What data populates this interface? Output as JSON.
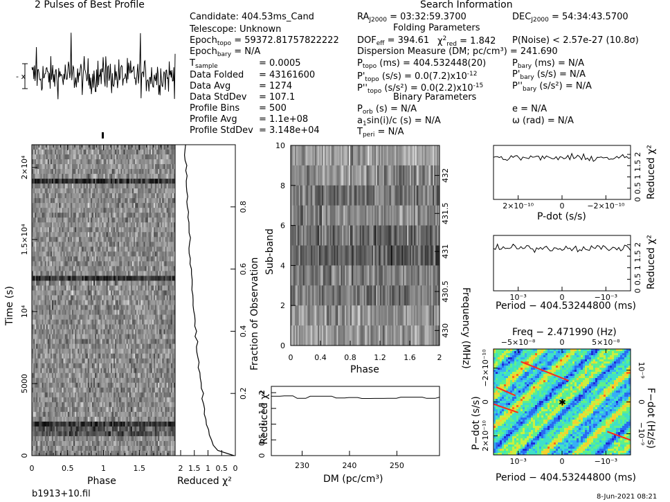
{
  "header": {
    "pulses_title": "2 Pulses of Best Profile",
    "search_title": "Search Information",
    "folding_title": "Folding Parameters",
    "binary_title": "Binary Parameters"
  },
  "info_left": [
    {
      "label": "Candidate:  404.53ms_Cand",
      "value": ""
    },
    {
      "label": "Telescope:  Unknown",
      "value": ""
    },
    {
      "label": "Epoch",
      "sub": "topo",
      "value": "= 59372.81757822222"
    },
    {
      "label": "Epoch",
      "sub": "bary",
      "value": "= N/A"
    },
    {
      "label": "T",
      "sub": "sample",
      "value": "=   0.0005"
    },
    {
      "label": "Data Folded",
      "value": "=   43161600"
    },
    {
      "label": "Data Avg",
      "value": "=   1274"
    },
    {
      "label": "Data StdDev",
      "value": "=   107.1"
    },
    {
      "label": "Profile Bins",
      "value": "=   500"
    },
    {
      "label": "Profile Avg",
      "value": "=   1.1e+08"
    },
    {
      "label": "Profile StdDev",
      "value": "=   3.148e+04"
    }
  ],
  "info_right": {
    "ra": "RA",
    "ra_sub": "J2000",
    "ra_val": "= 03:32:59.3700",
    "dec": "DEC",
    "dec_sub": "J2000",
    "dec_val": "= 54:34:43.5700",
    "dof": "DOF",
    "dof_sub": "eff",
    "dof_val": "= 394.61",
    "chi": "χ",
    "chi_sup": "2",
    "chi_sub": "red",
    "chi_val": "= 1.842",
    "pnoise": "P(Noise) < 2.57e-27   (10.8σ)",
    "dm_line": "Dispersion Measure (DM; pc/cm³) = 241.690",
    "ptopo": "P",
    "ptopo_sub": "topo",
    "ptopo_val": "(ms)  =  404.532448(20)",
    "pbary": "P",
    "pbary_sub": "bary",
    "pbary_val": "(ms) = N/A",
    "pdtopo": "P'",
    "pdtopo_sub": "topo",
    "pdtopo_val": "(s/s) = 0.0(7.2)x10",
    "pdtopo_exp": "-12",
    "pdbary": "P'",
    "pdbary_sub": "bary",
    "pdbary_val": "(s/s) = N/A",
    "pddtopo": "P''",
    "pddtopo_sub": "topo",
    "pddtopo_val": "(s/s²) = 0.0(2.2)x10",
    "pddtopo_exp": "-15",
    "pddbary": "P''",
    "pddbary_sub": "bary",
    "pddbary_val": "(s/s²) = N/A",
    "porb": "P",
    "porb_sub": "orb",
    "porb_val": "(s) = N/A",
    "ecc": "e = N/A",
    "asini": "a",
    "asini_sub": "1",
    "asini_val": "sin(i)/c (s) = N/A",
    "omega": "ω (rad) = N/A",
    "tperi": "T",
    "tperi_sub": "peri",
    "tperi_val": "= N/A"
  },
  "footer": {
    "filename": "b1913+10.fil",
    "date": "8-Jun-2021 08:21"
  },
  "colors": {
    "line": "#000000",
    "grid_dark": "#1a1a1a",
    "map_low": "#1a2bd9",
    "map_high": "#ff2a1a"
  },
  "chart_data": [
    {
      "id": "profile",
      "type": "line",
      "title": "2 Pulses of Best Profile",
      "xlabel": "",
      "ylabel": "",
      "note": "noise-like pulse profile, 2 rotations, no significant peak"
    },
    {
      "id": "time_phase",
      "type": "heatmap",
      "xlabel": "Phase",
      "ylabel": "Time (s)",
      "x_ticks": [
        "0",
        "0.5",
        "1",
        "1.5"
      ],
      "y_ticks": [
        "0",
        "5000",
        "10⁴",
        "1.5×10⁴",
        "2×10⁴"
      ],
      "xlim": [
        0,
        2
      ],
      "ylim": [
        0,
        21580
      ],
      "right_axis_label": "Fraction of Observation",
      "right_ticks": [
        "0.2",
        "0.4",
        "0.6",
        "0.8"
      ]
    },
    {
      "id": "time_chi2",
      "type": "line",
      "xlabel": "Reduced χ²",
      "x_ticks": [
        "2",
        "1.5",
        "1",
        "0.5",
        "0"
      ],
      "note": "rises from ~0 at start to ~2 over observation"
    },
    {
      "id": "subband_phase",
      "type": "heatmap",
      "xlabel": "Phase",
      "ylabel": "Sub-band",
      "right_axis_label": "Frequency (MHz)",
      "x_ticks": [
        "0",
        "0.4",
        "0.8",
        "1.2",
        "1.6",
        "2"
      ],
      "y_ticks": [
        "0",
        "2",
        "4",
        "6",
        "8",
        "10"
      ],
      "right_ticks": [
        "430",
        "430.5",
        "431",
        "431.5",
        "432"
      ],
      "xlim": [
        0,
        2
      ],
      "ylim": [
        0,
        10
      ]
    },
    {
      "id": "dm_chi2",
      "type": "line",
      "xlabel": "DM (pc/cm³)",
      "ylabel": "Reduced χ²",
      "x_ticks": [
        "230",
        "240",
        "250"
      ],
      "y_ticks": [
        "0",
        "0.5",
        "1",
        "1.5",
        "2"
      ],
      "xlim": [
        223.5,
        259
      ],
      "ylim": [
        0,
        2.2
      ],
      "note": "flat at ~1.84-1.9"
    },
    {
      "id": "pdot_chi2",
      "type": "line",
      "xlabel": "P-dot (s/s)",
      "ylabel": "Reduced χ²",
      "x_ticks": [
        "2×10⁻¹⁰",
        "0",
        "−2×10⁻¹⁰"
      ],
      "y_ticks": [
        "0",
        "0.5",
        "1",
        "1.5",
        "2"
      ]
    },
    {
      "id": "period_chi2",
      "type": "line",
      "xlabel": "Period − 404.53244800 (ms)",
      "ylabel": "Reduced χ²",
      "x_ticks": [
        "10⁻³",
        "0",
        "−10⁻³"
      ],
      "y_ticks": [
        "0",
        "0.5",
        "1",
        "1.5",
        "2"
      ]
    },
    {
      "id": "ppdot_map",
      "type": "heatmap",
      "title": "Freq − 2.471990 (Hz)",
      "xlabel": "Period − 404.53244800 (ms)",
      "ylabel": "P−dot (s/s)",
      "right_axis_label": "F−dot (Hz/s)",
      "top_ticks": [
        "−5×10⁻⁸",
        "0",
        "5×10⁻⁸"
      ],
      "x_ticks": [
        "10⁻³",
        "0",
        "−10⁻³"
      ],
      "y_ticks": [
        "2×10⁻¹⁰",
        "0",
        "−2×10⁻¹⁰"
      ],
      "right_ticks": [
        "10⁻⁹",
        "0",
        "−10⁻⁹"
      ]
    }
  ]
}
